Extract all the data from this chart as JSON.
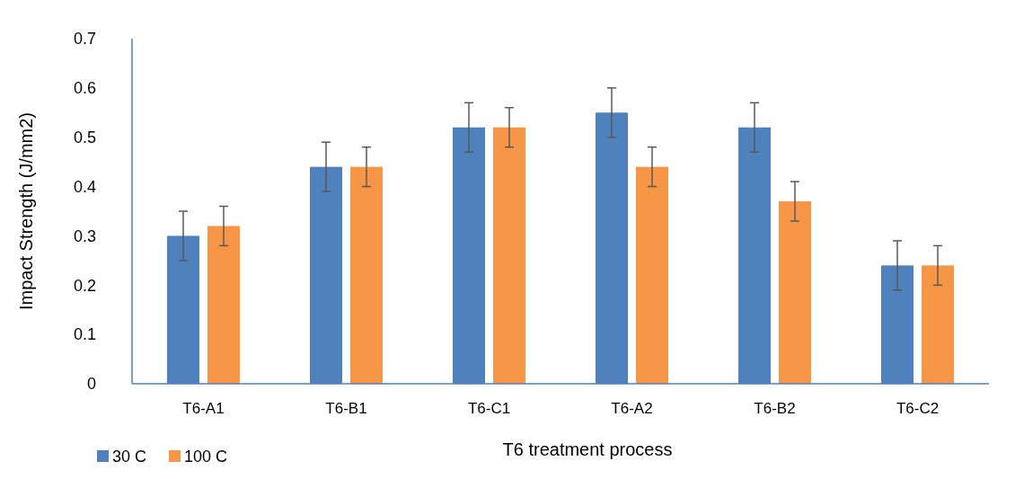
{
  "chart_data": {
    "type": "bar",
    "xlabel": "T6 treatment process",
    "ylabel": "Impact Strength (J/mm2)",
    "categories": [
      "T6-A1",
      "T6-B1",
      "T6-C1",
      "T6-A2",
      "T6-B2",
      "T6-C2"
    ],
    "series": [
      {
        "name": "30 C",
        "color": "#4f81bd",
        "values": [
          0.3,
          0.44,
          0.52,
          0.55,
          0.52,
          0.24
        ],
        "errors": [
          0.05,
          0.05,
          0.05,
          0.05,
          0.05,
          0.05
        ]
      },
      {
        "name": "100 C",
        "color": "#f79646",
        "values": [
          0.32,
          0.44,
          0.52,
          0.44,
          0.37,
          0.24
        ],
        "errors": [
          0.04,
          0.04,
          0.04,
          0.04,
          0.04,
          0.04
        ]
      }
    ],
    "ylim": [
      0,
      0.7
    ],
    "yticks": [
      0,
      0.1,
      0.2,
      0.3,
      0.4,
      0.5,
      0.6,
      0.7
    ],
    "grid": false,
    "legend": "bottom left"
  }
}
